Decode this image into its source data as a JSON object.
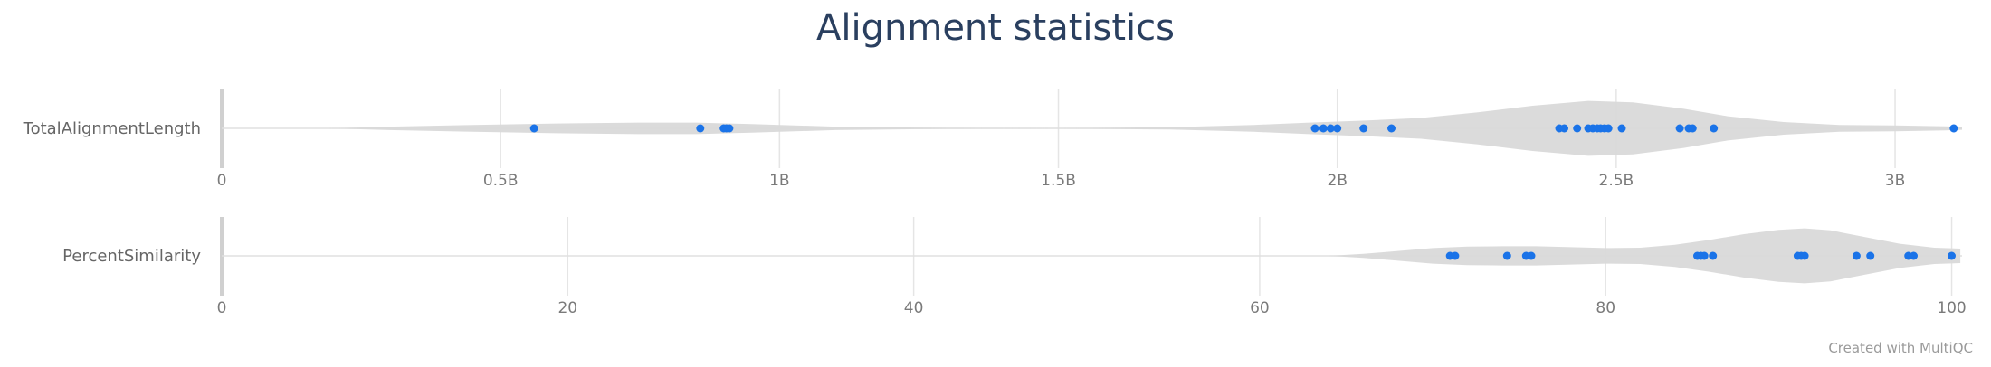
{
  "title": "Alignment statistics",
  "credit": "Created with MultiQC",
  "colors": {
    "violin": "#d9d9d9",
    "points": "#1a73e8",
    "grid": "#e5e5e5",
    "title": "#2a3f5f"
  },
  "chart_data": [
    {
      "type": "violin",
      "category": "TotalAlignmentLength",
      "xlim": [
        0,
        3120000000
      ],
      "tick_values": [
        0,
        500000000,
        1000000000,
        1500000000,
        2000000000,
        2500000000,
        3000000000
      ],
      "tick_labels": [
        "0",
        "0.5B",
        "1B",
        "1.5B",
        "2B",
        "2.5B",
        "3B"
      ],
      "grid": true,
      "points": [
        560000000,
        858000000,
        900000000,
        905000000,
        910000000,
        1960000000,
        1975000000,
        1988000000,
        2000000000,
        2047000000,
        2097000000,
        2398000000,
        2407000000,
        2430000000,
        2450000000,
        2458000000,
        2466000000,
        2472000000,
        2479000000,
        2486000000,
        2510000000,
        2614000000,
        2630000000,
        2637000000,
        2675000000,
        3105000000
      ],
      "density": [
        [
          190000000,
          0.0
        ],
        [
          300000000,
          0.06
        ],
        [
          450000000,
          0.12
        ],
        [
          600000000,
          0.17
        ],
        [
          750000000,
          0.2
        ],
        [
          850000000,
          0.2
        ],
        [
          950000000,
          0.15
        ],
        [
          1100000000,
          0.06
        ],
        [
          1300000000,
          0.02
        ],
        [
          1500000000,
          0.01
        ],
        [
          1700000000,
          0.04
        ],
        [
          1850000000,
          0.12
        ],
        [
          1950000000,
          0.2
        ],
        [
          2050000000,
          0.27
        ],
        [
          2150000000,
          0.36
        ],
        [
          2250000000,
          0.55
        ],
        [
          2350000000,
          0.78
        ],
        [
          2450000000,
          0.95
        ],
        [
          2530000000,
          0.9
        ],
        [
          2620000000,
          0.68
        ],
        [
          2700000000,
          0.42
        ],
        [
          2800000000,
          0.22
        ],
        [
          2900000000,
          0.12
        ],
        [
          3000000000,
          0.1
        ],
        [
          3090000000,
          0.07
        ],
        [
          3120000000,
          0.05
        ]
      ]
    },
    {
      "type": "violin",
      "category": "PercentSimilarity",
      "xlim": [
        0,
        100.6
      ],
      "tick_values": [
        0,
        20,
        40,
        60,
        80,
        100
      ],
      "tick_labels": [
        "0",
        "20",
        "40",
        "60",
        "80",
        "100"
      ],
      "grid": true,
      "points": [
        71.0,
        71.3,
        74.3,
        75.4,
        75.7,
        85.3,
        85.5,
        85.7,
        86.2,
        91.1,
        91.3,
        91.5,
        94.5,
        95.3,
        97.5,
        97.8,
        100.0
      ],
      "density": [
        [
          64.0,
          0.0
        ],
        [
          66.0,
          0.07
        ],
        [
          68.0,
          0.17
        ],
        [
          70.0,
          0.27
        ],
        [
          72.0,
          0.32
        ],
        [
          74.0,
          0.33
        ],
        [
          76.0,
          0.33
        ],
        [
          78.0,
          0.3
        ],
        [
          80.0,
          0.27
        ],
        [
          82.0,
          0.28
        ],
        [
          84.0,
          0.38
        ],
        [
          86.0,
          0.55
        ],
        [
          88.0,
          0.75
        ],
        [
          90.0,
          0.9
        ],
        [
          91.5,
          0.95
        ],
        [
          93.0,
          0.88
        ],
        [
          95.0,
          0.65
        ],
        [
          97.0,
          0.42
        ],
        [
          99.0,
          0.28
        ],
        [
          100.5,
          0.25
        ]
      ]
    }
  ]
}
